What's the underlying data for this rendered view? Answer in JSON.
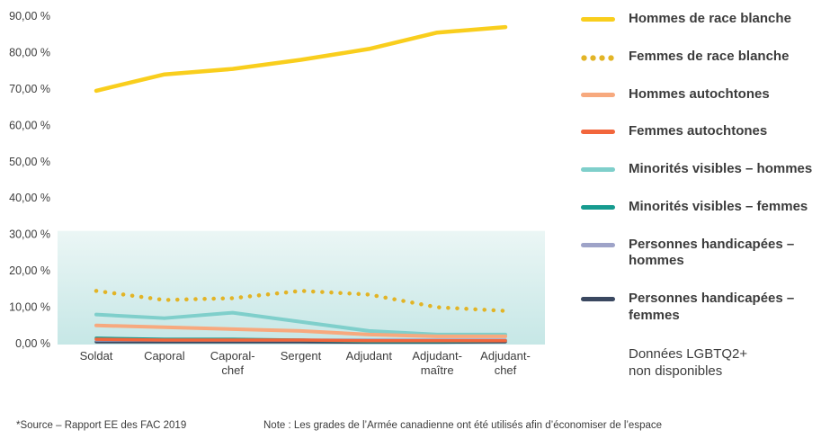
{
  "chart_data": {
    "type": "line",
    "title": "",
    "xlabel": "",
    "ylabel": "",
    "ylim": [
      0,
      90
    ],
    "grid": false,
    "legend_position": "right",
    "categories": [
      "Soldat",
      "Caporal",
      "Caporal-chef",
      "Sergent",
      "Adjudant",
      "Adjudant-maître",
      "Adjudant-chef"
    ],
    "y_tick_labels": [
      "90,00 %",
      "80,00 %",
      "70,00 %",
      "60,00 %",
      "50,00 %",
      "40,00 %",
      "30,00 %",
      "20,00 %",
      "10,00 %",
      "0,00 %"
    ],
    "shaded_band": {
      "from": 0,
      "to": 31,
      "color_top": "#EBF6F5",
      "color_bottom": "#C6E7E6"
    },
    "series": [
      {
        "name": "Hommes de race blanche",
        "color": "#F9CE1D",
        "style": "solid",
        "width": 4.5,
        "values": [
          69.5,
          74.0,
          75.5,
          78.0,
          81.0,
          85.5,
          87.0
        ]
      },
      {
        "name": "Femmes de race blanche",
        "color": "#E2B426",
        "style": "dotted",
        "width": 4.5,
        "values": [
          14.5,
          12.0,
          12.5,
          14.5,
          13.5,
          10.0,
          9.0
        ]
      },
      {
        "name": "Hommes autochtones",
        "color": "#F7A97E",
        "style": "solid",
        "width": 4,
        "values": [
          5.0,
          4.5,
          4.0,
          3.5,
          2.5,
          2.0,
          2.0
        ]
      },
      {
        "name": "Femmes autochtones",
        "color": "#F2663C",
        "style": "solid",
        "width": 3.5,
        "values": [
          1.2,
          1.0,
          1.0,
          1.0,
          0.8,
          0.8,
          0.8
        ]
      },
      {
        "name": "Minorités visibles – hommes",
        "color": "#7FCFCB",
        "style": "solid",
        "width": 4,
        "values": [
          8.0,
          7.0,
          8.5,
          6.0,
          3.5,
          2.5,
          2.5
        ]
      },
      {
        "name": "Minorités visibles – femmes",
        "color": "#169B8F",
        "style": "solid",
        "width": 3.5,
        "values": [
          1.5,
          1.2,
          1.2,
          1.0,
          0.6,
          0.6,
          0.8
        ]
      },
      {
        "name": "Personnes handicapées – hommes",
        "color": "#9EA3C8",
        "style": "solid",
        "width": 3.5,
        "values": [
          1.0,
          1.0,
          1.0,
          1.0,
          1.0,
          1.0,
          1.0
        ]
      },
      {
        "name": "Personnes handicapées – femmes",
        "color": "#3A4860",
        "style": "solid",
        "width": 3.5,
        "values": [
          0.5,
          0.5,
          0.5,
          0.5,
          0.4,
          0.4,
          0.5
        ]
      }
    ],
    "note_legend": "Données LGBTQ2+\nnon disponibles"
  },
  "footer": {
    "source": "*Source – Rapport EE des FAC 2019",
    "note": "Note : Les grades de l’Armée canadienne ont été utilisés afin d’économiser de l’espace"
  }
}
